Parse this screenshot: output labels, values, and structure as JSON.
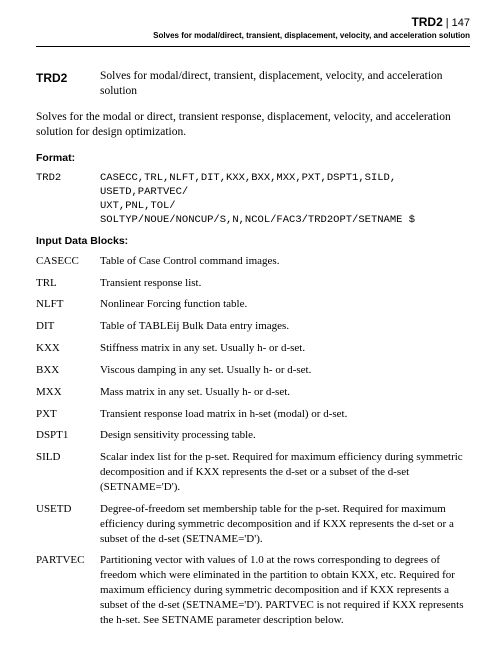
{
  "header": {
    "cmd": "TRD2",
    "page_no": "147",
    "subtitle": "Solves for modal/direct, transient, displacement, velocity, and acceleration solution"
  },
  "title": {
    "cmd": "TRD2",
    "desc": "Solves for modal/direct, transient, displacement, velocity, and acceleration solution"
  },
  "intro": "Solves for the modal or direct, transient response, displacement, velocity, and acceleration solution for design optimization.",
  "sections": {
    "format_label": "Format:",
    "input_blocks_label": "Input Data Blocks:"
  },
  "format": {
    "key": "TRD2",
    "body": "CASECC,TRL,NLFT,DIT,KXX,BXX,MXX,PXT,DSPT1,SILD,\nUSETD,PARTVEC/\nUXT,PNL,TOL/\nSOLTYP/NOUE/NONCUP/S,N,NCOL/FAC3/TRD2OPT/SETNAME $"
  },
  "blocks": [
    {
      "key": "CASECC",
      "desc": "Table of Case Control command images."
    },
    {
      "key": "TRL",
      "desc": "Transient response list."
    },
    {
      "key": "NLFT",
      "desc": "Nonlinear Forcing function table."
    },
    {
      "key": "DIT",
      "desc": "Table of TABLEij Bulk Data entry images."
    },
    {
      "key": "KXX",
      "desc": "Stiffness matrix in any set. Usually h- or d-set."
    },
    {
      "key": "BXX",
      "desc": "Viscous damping in any set. Usually h- or d-set."
    },
    {
      "key": "MXX",
      "desc": "Mass matrix in any set. Usually h- or d-set."
    },
    {
      "key": "PXT",
      "desc": "Transient response load matrix in h-set (modal) or d-set."
    },
    {
      "key": "DSPT1",
      "desc": "Design sensitivity processing table."
    },
    {
      "key": "SILD",
      "desc": "Scalar index list for the p-set. Required for maximum efficiency during symmetric decomposition and if KXX represents the d-set or a subset of the d-set (SETNAME='D')."
    },
    {
      "key": "USETD",
      "desc": "Degree-of-freedom set membership table for the p-set. Required for maximum efficiency during symmetric decomposition and if KXX represents the d-set or a subset of the d-set (SETNAME='D')."
    },
    {
      "key": "PARTVEC",
      "desc": "Partitioning vector with values of 1.0 at the rows corresponding to degrees of freedom which were eliminated in the partition to obtain KXX, etc. Required for maximum efficiency during symmetric decomposition and if KXX represents a subset of the d-set (SETNAME='D'). PARTVEC is not required if KXX represents the h-set. See SETNAME parameter description below."
    }
  ]
}
